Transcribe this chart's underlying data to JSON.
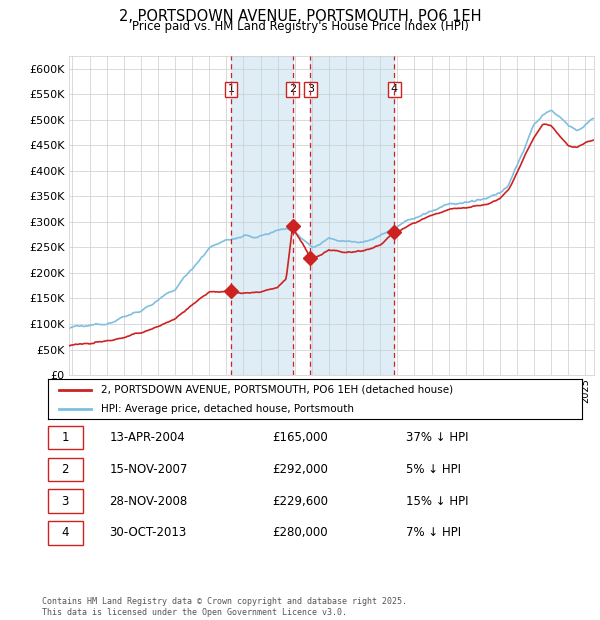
{
  "title": "2, PORTSDOWN AVENUE, PORTSMOUTH, PO6 1EH",
  "subtitle": "Price paid vs. HM Land Registry's House Price Index (HPI)",
  "ylim": [
    0,
    625000
  ],
  "yticks": [
    0,
    50000,
    100000,
    150000,
    200000,
    250000,
    300000,
    350000,
    400000,
    450000,
    500000,
    550000,
    600000
  ],
  "xlim_start": 1994.8,
  "xlim_end": 2025.5,
  "hpi_color": "#7fbfdf",
  "price_color": "#cc2222",
  "vline_color": "#cc2222",
  "shade_color": "#daeaf5",
  "transaction_dates": [
    2004.28,
    2007.88,
    2008.91,
    2013.83
  ],
  "transaction_prices": [
    165000,
    292000,
    229600,
    280000
  ],
  "transaction_labels": [
    "1",
    "2",
    "3",
    "4"
  ],
  "legend_entries": [
    "2, PORTSDOWN AVENUE, PORTSMOUTH, PO6 1EH (detached house)",
    "HPI: Average price, detached house, Portsmouth"
  ],
  "table_rows": [
    [
      "1",
      "13-APR-2004",
      "£165,000",
      "37% ↓ HPI"
    ],
    [
      "2",
      "15-NOV-2007",
      "£292,000",
      "5% ↓ HPI"
    ],
    [
      "3",
      "28-NOV-2008",
      "£229,600",
      "15% ↓ HPI"
    ],
    [
      "4",
      "30-OCT-2013",
      "£280,000",
      "7% ↓ HPI"
    ]
  ],
  "footer": "Contains HM Land Registry data © Crown copyright and database right 2025.\nThis data is licensed under the Open Government Licence v3.0."
}
